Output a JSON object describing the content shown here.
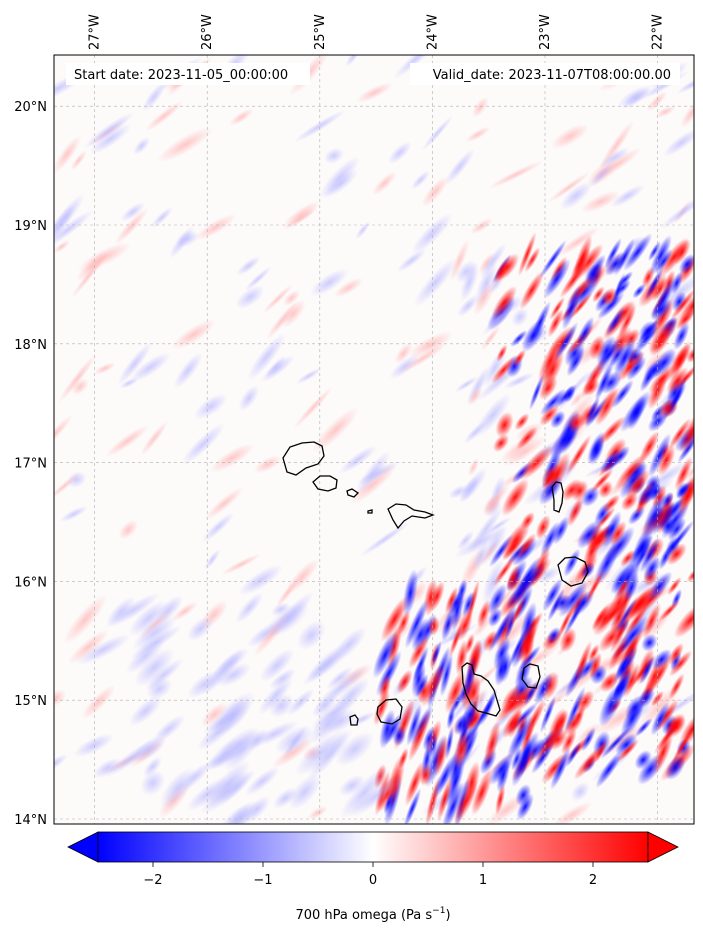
{
  "header": {
    "start_date": "Start date: 2023-11-05_00:00:00",
    "valid_date": "Valid_date: 2023-11-07T08:00:00.00"
  },
  "map": {
    "lon_labels": [
      "27°W",
      "26°W",
      "25°W",
      "24°W",
      "23°W",
      "22°W"
    ],
    "lon_values": [
      -27,
      -26,
      -25,
      -24,
      -23,
      -22
    ],
    "lat_labels": [
      "20°N",
      "19°N",
      "18°N",
      "17°N",
      "16°N",
      "15°N",
      "14°N"
    ],
    "lat_values": [
      20,
      19,
      18,
      17,
      16,
      15,
      14
    ],
    "gridlines": true,
    "field": "700 hPa omega",
    "islands": [
      "santo-antao",
      "sao-vicente",
      "santa-luzia",
      "branco",
      "sao-nicolau",
      "sal",
      "boa-vista",
      "maio",
      "santiago",
      "fogo",
      "brava"
    ]
  },
  "colorbar": {
    "tick_labels": [
      "−2",
      "−1",
      "0",
      "1",
      "2"
    ],
    "tick_values": [
      -2,
      -1,
      0,
      1,
      2
    ],
    "range": [
      -2.5,
      2.5
    ],
    "colormap": "bwr",
    "extend": "both",
    "label_main": "700 hPa omega (Pa s",
    "label_sup": "−1",
    "label_close": ")"
  },
  "colors": {
    "negative": "#0000ff",
    "zero": "#ffffff",
    "positive": "#ff0000",
    "coast": "#000000",
    "grid": "#b0b0b0"
  }
}
